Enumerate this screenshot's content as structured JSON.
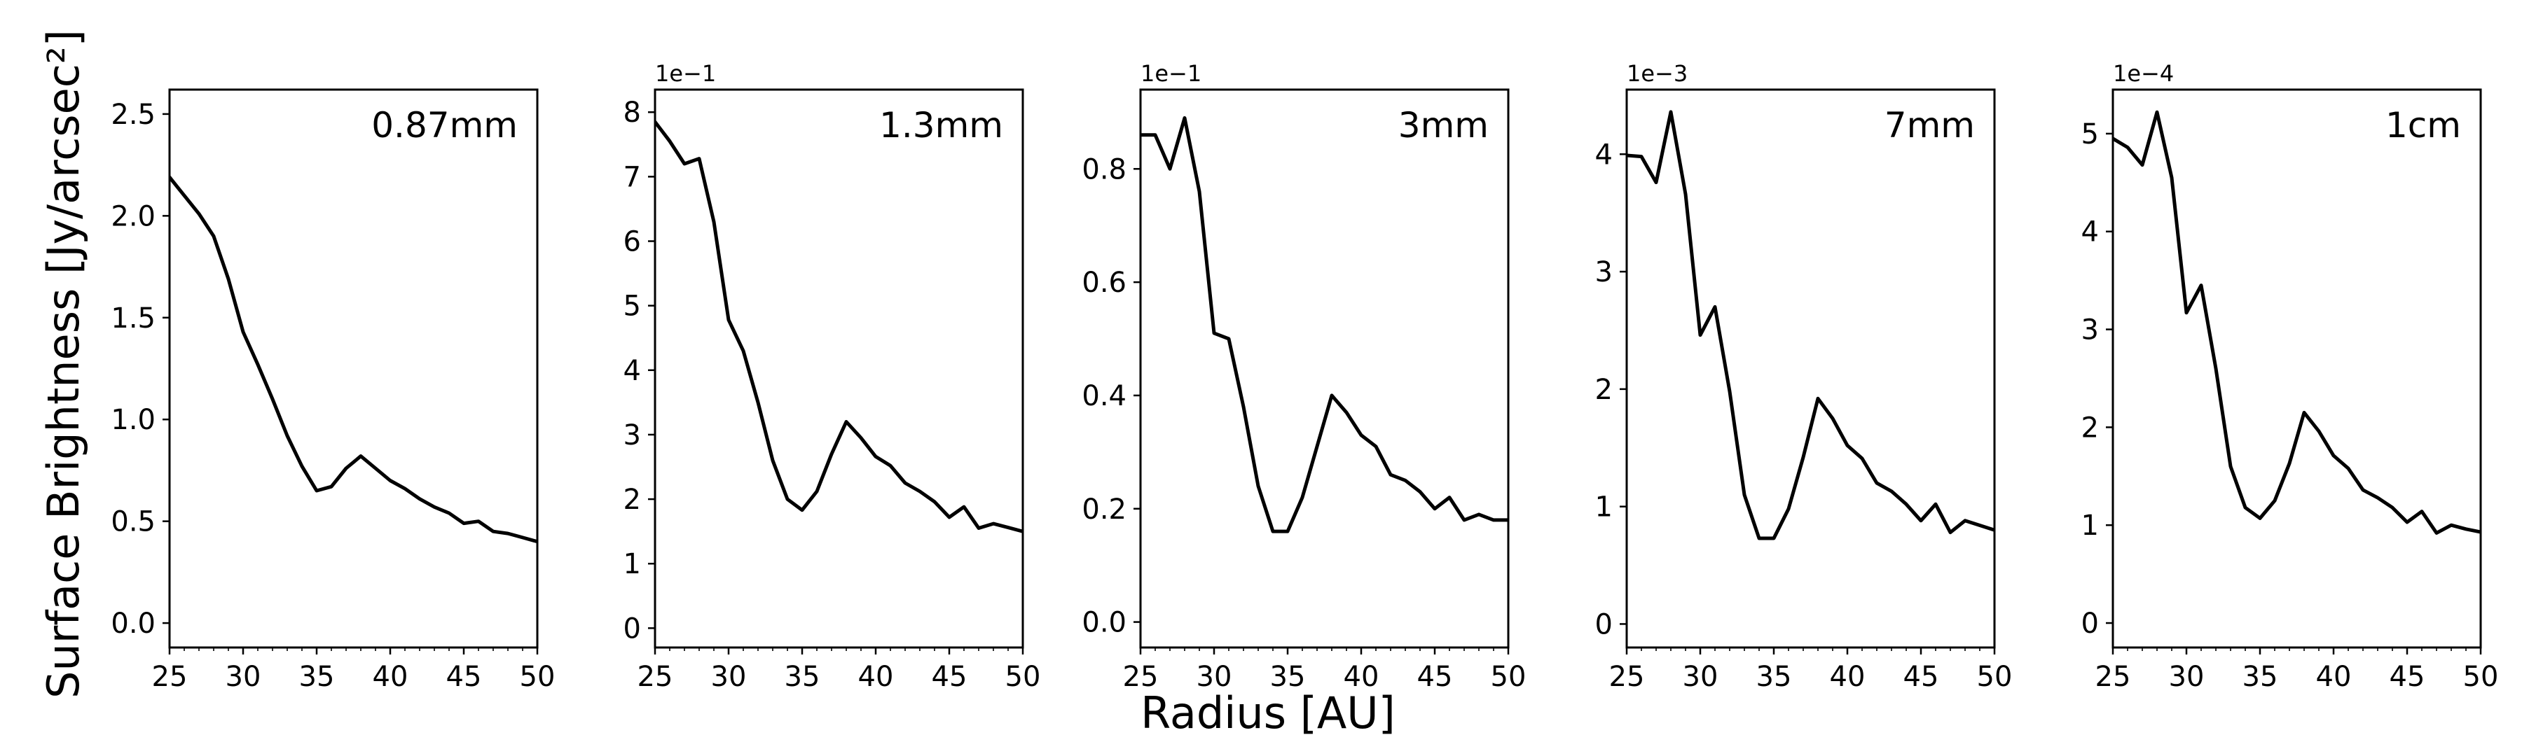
{
  "figure": {
    "ylabel": "Surface Brightness [Jy/arcsec²]",
    "xlabel": "Radius [AU]",
    "line_color": "#000000"
  },
  "chart_data": [
    {
      "type": "line",
      "panel_label": "0.87mm",
      "offset_text": "",
      "xlim": [
        25,
        50
      ],
      "ylim": [
        -0.12,
        2.62
      ],
      "x_ticks": [
        25,
        30,
        35,
        40,
        45,
        50
      ],
      "x_tick_labels": [
        "25",
        "30",
        "35",
        "40",
        "45",
        "50"
      ],
      "y_ticks": [
        0.0,
        0.5,
        1.0,
        1.5,
        2.0,
        2.5
      ],
      "y_tick_labels": [
        "0.0",
        "0.5",
        "1.0",
        "1.5",
        "2.0",
        "2.5"
      ],
      "x": [
        25,
        26,
        27,
        28,
        29,
        30,
        31,
        32,
        33,
        34,
        35,
        36,
        37,
        38,
        39,
        40,
        41,
        42,
        43,
        44,
        45,
        46,
        47,
        48,
        49,
        50
      ],
      "y": [
        2.19,
        2.1,
        2.01,
        1.9,
        1.69,
        1.43,
        1.27,
        1.1,
        0.92,
        0.77,
        0.65,
        0.67,
        0.76,
        0.82,
        0.76,
        0.7,
        0.66,
        0.61,
        0.57,
        0.54,
        0.49,
        0.5,
        0.45,
        0.44,
        0.42,
        0.4
      ]
    },
    {
      "type": "line",
      "panel_label": "1.3mm",
      "offset_text": "1e−1",
      "xlim": [
        25,
        50
      ],
      "ylim": [
        -0.3,
        8.35
      ],
      "x_ticks": [
        25,
        30,
        35,
        40,
        45,
        50
      ],
      "x_tick_labels": [
        "25",
        "30",
        "35",
        "40",
        "45",
        "50"
      ],
      "y_ticks": [
        0,
        1,
        2,
        3,
        4,
        5,
        6,
        7,
        8
      ],
      "y_tick_labels": [
        "0",
        "1",
        "2",
        "3",
        "4",
        "5",
        "6",
        "7",
        "8"
      ],
      "x": [
        25,
        25.5,
        26,
        27,
        28,
        29,
        30,
        31,
        32,
        33,
        34,
        35,
        36,
        37,
        38,
        39,
        40,
        41,
        42,
        43,
        44,
        45,
        46,
        47,
        48,
        49,
        50
      ],
      "y": [
        7.85,
        7.7,
        7.55,
        7.2,
        7.28,
        6.3,
        4.78,
        4.3,
        3.5,
        2.6,
        2.0,
        1.83,
        2.12,
        2.7,
        3.2,
        2.95,
        2.66,
        2.52,
        2.25,
        2.12,
        1.96,
        1.72,
        1.88,
        1.55,
        1.62,
        1.56,
        1.5
      ]
    },
    {
      "type": "line",
      "panel_label": "3mm",
      "offset_text": "1e−1",
      "xlim": [
        25,
        50
      ],
      "ylim": [
        -0.045,
        0.94
      ],
      "x_ticks": [
        25,
        30,
        35,
        40,
        45,
        50
      ],
      "x_tick_labels": [
        "25",
        "30",
        "35",
        "40",
        "45",
        "50"
      ],
      "y_ticks": [
        0.0,
        0.2,
        0.4,
        0.6,
        0.8
      ],
      "y_tick_labels": [
        "0.0",
        "0.2",
        "0.4",
        "0.6",
        "0.8"
      ],
      "x": [
        25,
        26,
        27,
        28,
        29,
        30,
        31,
        32,
        33,
        34,
        35,
        36,
        37,
        38,
        39,
        40,
        41,
        42,
        43,
        44,
        45,
        46,
        47,
        48,
        49,
        50
      ],
      "y": [
        0.86,
        0.86,
        0.8,
        0.89,
        0.76,
        0.51,
        0.5,
        0.38,
        0.24,
        0.16,
        0.16,
        0.22,
        0.31,
        0.4,
        0.37,
        0.33,
        0.31,
        0.26,
        0.25,
        0.23,
        0.2,
        0.22,
        0.18,
        0.19,
        0.18,
        0.18
      ]
    },
    {
      "type": "line",
      "panel_label": "7mm",
      "offset_text": "1e−3",
      "xlim": [
        25,
        50
      ],
      "ylim": [
        -0.2,
        4.55
      ],
      "x_ticks": [
        25,
        30,
        35,
        40,
        45,
        50
      ],
      "x_tick_labels": [
        "25",
        "30",
        "35",
        "40",
        "45",
        "50"
      ],
      "y_ticks": [
        0,
        1,
        2,
        3,
        4
      ],
      "y_tick_labels": [
        "0",
        "1",
        "2",
        "3",
        "4"
      ],
      "x": [
        25,
        26,
        27,
        28,
        29,
        30,
        31,
        32,
        33,
        34,
        35,
        36,
        37,
        38,
        39,
        40,
        41,
        42,
        43,
        44,
        45,
        46,
        47,
        48,
        49,
        50
      ],
      "y": [
        3.99,
        3.98,
        3.76,
        4.36,
        3.66,
        2.46,
        2.7,
        1.98,
        1.1,
        0.73,
        0.73,
        0.98,
        1.42,
        1.92,
        1.75,
        1.52,
        1.41,
        1.2,
        1.13,
        1.02,
        0.88,
        1.02,
        0.78,
        0.88,
        0.84,
        0.8
      ]
    },
    {
      "type": "line",
      "panel_label": "1cm",
      "offset_text": "1e−4",
      "xlim": [
        25,
        50
      ],
      "ylim": [
        -0.25,
        5.45
      ],
      "x_ticks": [
        25,
        30,
        35,
        40,
        45,
        50
      ],
      "x_tick_labels": [
        "25",
        "30",
        "35",
        "40",
        "45",
        "50"
      ],
      "y_ticks": [
        0,
        1,
        2,
        3,
        4,
        5
      ],
      "y_tick_labels": [
        "0",
        "1",
        "2",
        "3",
        "4",
        "5"
      ],
      "x": [
        25,
        26,
        27,
        28,
        29,
        30,
        31,
        32,
        33,
        34,
        35,
        36,
        37,
        38,
        39,
        40,
        41,
        42,
        43,
        44,
        45,
        46,
        47,
        48,
        49,
        50
      ],
      "y": [
        4.95,
        4.86,
        4.68,
        5.22,
        4.55,
        3.17,
        3.45,
        2.6,
        1.6,
        1.18,
        1.07,
        1.25,
        1.63,
        2.15,
        1.96,
        1.71,
        1.58,
        1.36,
        1.28,
        1.18,
        1.03,
        1.14,
        0.92,
        1.0,
        0.96,
        0.93
      ]
    }
  ]
}
